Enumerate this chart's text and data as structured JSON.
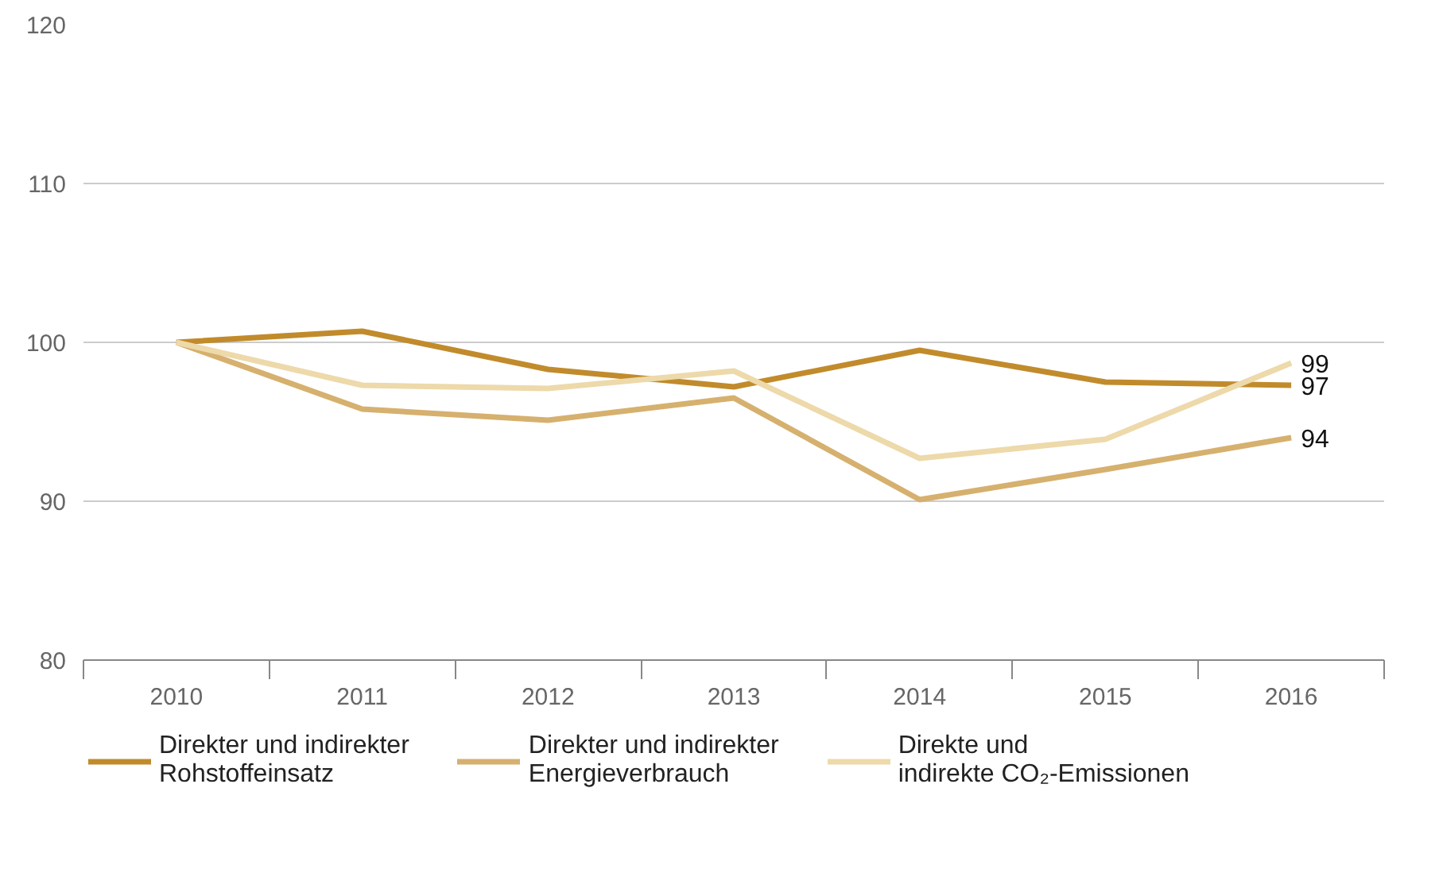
{
  "chart_data": {
    "type": "line",
    "categories": [
      "2010",
      "2011",
      "2012",
      "2013",
      "2014",
      "2015",
      "2016"
    ],
    "ylim": [
      80,
      120
    ],
    "yticks": [
      80,
      90,
      100,
      110,
      120
    ],
    "grid": "y",
    "legend": "bottom",
    "line_style": "solid",
    "marker": "none",
    "series": [
      {
        "name": "Direkter und indirekter\nRohstoffeinsatz",
        "color": "#c18b2c",
        "values": [
          100,
          100.7,
          98.3,
          97.2,
          99.5,
          97.5,
          97.3
        ],
        "value_labels": [
          null,
          null,
          null,
          null,
          null,
          null,
          "97"
        ]
      },
      {
        "name": "Direkter und indirekter\nEnergieverbrauch",
        "color": "#d6b06e",
        "values": [
          100,
          95.8,
          95.1,
          96.5,
          90.1,
          92.0,
          94.0
        ],
        "value_labels": [
          null,
          null,
          null,
          null,
          null,
          null,
          "94"
        ]
      },
      {
        "name": "Direkte und\nindirekte CO₂-Emissionen",
        "color": "#edd9aa",
        "values": [
          100,
          97.3,
          97.1,
          98.2,
          92.7,
          93.9,
          98.7
        ],
        "value_labels": [
          null,
          null,
          null,
          null,
          null,
          null,
          "99"
        ]
      }
    ]
  }
}
